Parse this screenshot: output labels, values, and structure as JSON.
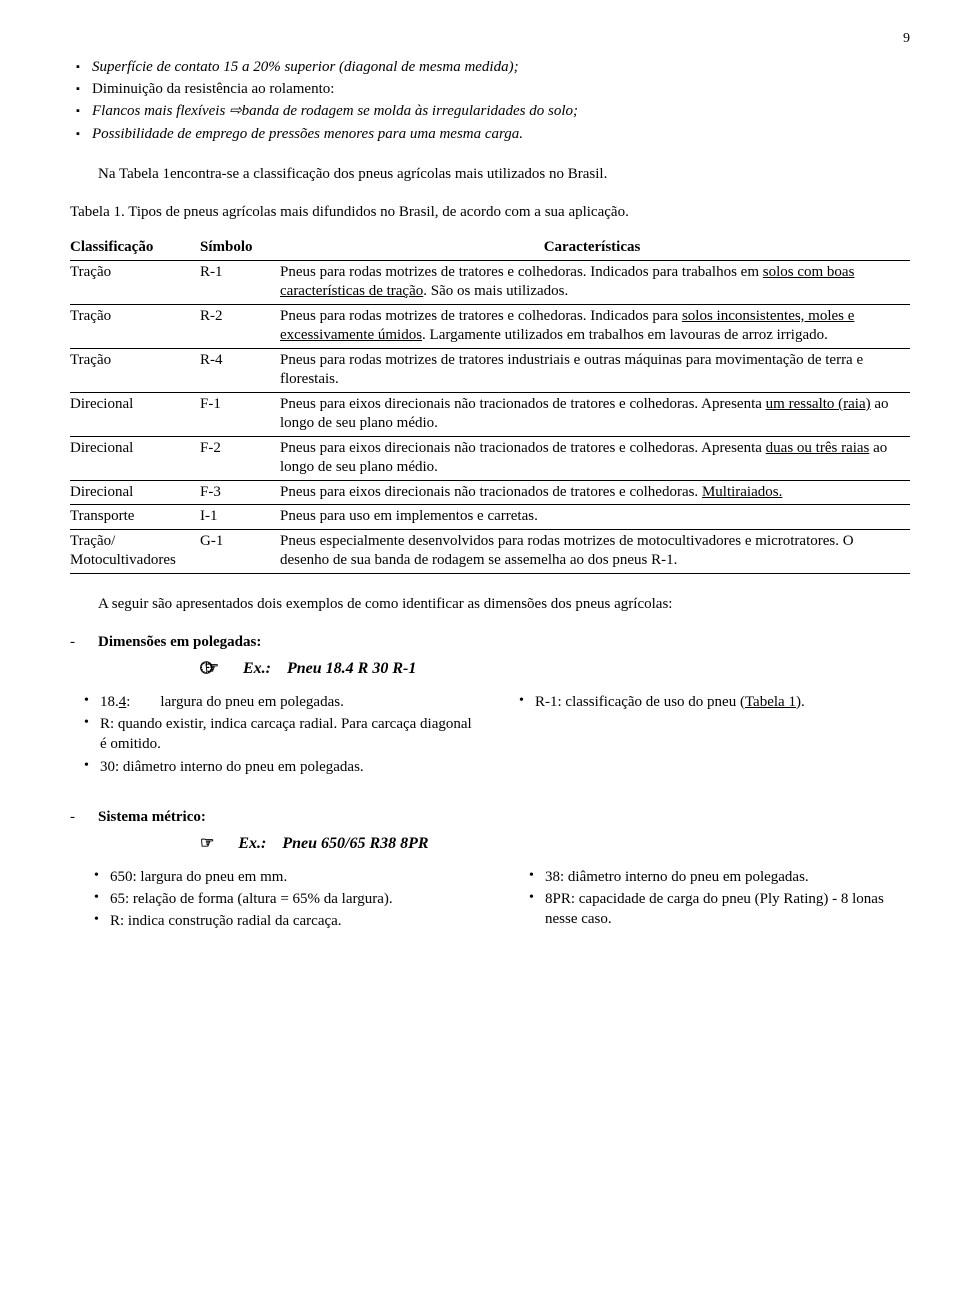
{
  "page_number": "9",
  "bullets": {
    "b1_pre": "Superfície de contato 15 a 20% superior (diagonal de mesma medida);",
    "b2": "Diminuição da resistência ao rolamento:",
    "b3_pre": "Flancos mais flexíveis ",
    "b3_post": "banda de rodagem se molda às irregularidades do solo;",
    "b4": "Possibilidade de emprego de pressões menores para uma mesma carga."
  },
  "para1": "Na Tabela 1encontra-se a classificação dos pneus agrícolas mais utilizados no Brasil.",
  "table_caption": "Tabela 1. Tipos de pneus agrícolas mais difundidos no Brasil, de acordo com a sua aplicação.",
  "headers": {
    "c1": "Classificação",
    "c2": "Símbolo",
    "c3": "Características"
  },
  "rows": [
    {
      "c1": "Tração",
      "c2": "R-1",
      "c3a": "Pneus para rodas motrizes de tratores e colhedoras. Indicados para trabalhos em ",
      "c3u": "solos com boas características de tração",
      "c3b": ". São os mais utilizados."
    },
    {
      "c1": "Tração",
      "c2": "R-2",
      "c3a": "Pneus para rodas motrizes de tratores e colhedoras. Indicados para ",
      "c3u": "solos inconsistentes, moles e excessivamente úmidos",
      "c3b": ". Largamente utilizados em trabalhos em lavouras de arroz irrigado."
    },
    {
      "c1": "Tração",
      "c2": "R-4",
      "c3a": "Pneus para rodas motrizes de tratores industriais e outras máquinas para movimentação de terra e florestais.",
      "c3u": "",
      "c3b": ""
    },
    {
      "c1": "Direcional",
      "c2": "F-1",
      "c3a": "Pneus para eixos direcionais não tracionados de tratores e colhedoras. Apresenta ",
      "c3u": "um ressalto (raia)",
      "c3b": " ao longo de seu plano médio."
    },
    {
      "c1": "Direcional",
      "c2": "F-2",
      "c3a": "Pneus para eixos direcionais não tracionados de tratores e colhedoras. Apresenta ",
      "c3u": "duas ou três raias",
      "c3b": " ao longo de seu plano médio."
    },
    {
      "c1": "Direcional",
      "c2": "F-3",
      "c3a": "Pneus para eixos direcionais não tracionados de tratores e colhedoras. ",
      "c3u": "Multiraiados.",
      "c3b": ""
    },
    {
      "c1": "Transporte",
      "c2": "I-1",
      "c3a": "Pneus para uso em implementos e carretas.",
      "c3u": "",
      "c3b": ""
    },
    {
      "c1": "Tração/ Motocultivadores",
      "c2": "G-1",
      "c3a": "Pneus especialmente desenvolvidos para rodas motrizes de motocultivadores e microtratores. O desenho de sua banda de rodagem se assemelha ao dos pneus R-1.",
      "c3u": "",
      "c3b": ""
    }
  ],
  "para2": "A seguir são apresentados dois exemplos de como identificar as dimensões dos pneus agrícolas:",
  "sec1": {
    "title": "Dimensões em polegadas:",
    "example_label": "Ex.:",
    "example_value": "Pneu 18.4 R 30 R-1",
    "left": {
      "l1a": "18.",
      "l1u": "4",
      "l1b": ":",
      "l1c": "largura do pneu em polegadas.",
      "l2": "R: quando existir, indica carcaça radial. Para carcaça diagonal é omitido.",
      "l3": "30: diâmetro interno do pneu em polegadas."
    },
    "right": {
      "r1a": "R-1: classificação de uso do pneu (",
      "r1u": "Tabela 1",
      "r1b": ")."
    }
  },
  "sec2": {
    "title": "Sistema métrico:",
    "example_label": "Ex.:",
    "example_value": "Pneu 650/65 R38 8PR",
    "left": {
      "l1": "650: largura do pneu em mm.",
      "l2": "65:   relação de forma (altura = 65% da largura).",
      "l3": "R:    indica construção radial da carcaça."
    },
    "right": {
      "r1": "38:  diâmetro interno do pneu em polegadas.",
      "r2": "8PR: capacidade de carga do pneu  (Ply Rating) - 8 lonas nesse caso."
    }
  }
}
